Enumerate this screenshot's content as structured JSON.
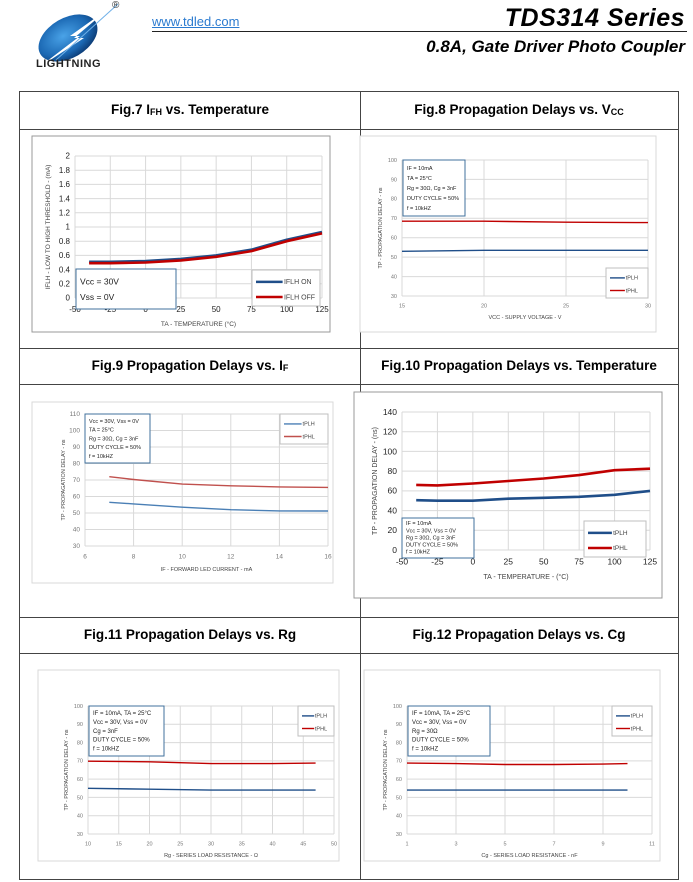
{
  "header": {
    "brand": "LIGHTNING",
    "registered": "®",
    "url": "www.tdled.com",
    "title": "TDS314  Series",
    "subtitle": "0.8A,  Gate  Driver  Photo  Coupler"
  },
  "figures": [
    {
      "caption_main": "Fig.7 I",
      "caption_sub": "FH",
      "caption_tail": " vs. Temperature"
    },
    {
      "caption_main": "Fig.8 Propagation Delays vs. V",
      "caption_sub": "CC",
      "caption_tail": ""
    },
    {
      "caption_main": "Fig.9 Propagation Delays vs. I",
      "caption_sub": "F",
      "caption_tail": ""
    },
    {
      "caption_main": "Fig.10 Propagation Delays vs. Temperature",
      "caption_sub": "",
      "caption_tail": ""
    },
    {
      "caption_main": "Fig.11 Propagation Delays vs. Rg",
      "caption_sub": "",
      "caption_tail": ""
    },
    {
      "caption_main": "Fig.12 Propagation Delays vs. Cg",
      "caption_sub": "",
      "caption_tail": ""
    }
  ],
  "colors": {
    "blue": "#1f4e89",
    "red": "#c00000",
    "lightblue": "#4a7fb5",
    "lightred": "#c0504d",
    "grid": "#d9d9d9"
  },
  "chart_data": [
    {
      "type": "line",
      "title": "Fig.7 IFH vs. Temperature",
      "xlabel": "TA - TEMPERATURE (°C)",
      "ylabel": "IFLH - LOW TO HIGH THRESHOLD - (mA)",
      "xlim": [
        -50,
        125
      ],
      "ylim": [
        0,
        2
      ],
      "xticks": [
        -50,
        -25,
        0,
        25,
        50,
        75,
        100,
        125
      ],
      "yticks": [
        0,
        0.2,
        0.4,
        0.6,
        0.8,
        1,
        1.2,
        1.4,
        1.6,
        1.8,
        2
      ],
      "ytick_labels": [
        "0",
        "0.2",
        "0.4",
        "0.6",
        "0.8",
        "1",
        "1.2",
        "1.4",
        "1.6",
        "1.8",
        "2"
      ],
      "annotation": [
        "Vcc = 30V",
        "Vss = 0V"
      ],
      "legend": "bottom-right",
      "bold": true,
      "series": [
        {
          "name": "IFLH ON",
          "color": "#1f4e89",
          "x": [
            -40,
            -25,
            0,
            25,
            50,
            75,
            100,
            125
          ],
          "y": [
            0.51,
            0.51,
            0.52,
            0.55,
            0.6,
            0.68,
            0.82,
            0.93
          ]
        },
        {
          "name": "IFLH OFF",
          "color": "#c00000",
          "x": [
            -40,
            -25,
            0,
            25,
            50,
            75,
            100,
            125
          ],
          "y": [
            0.49,
            0.49,
            0.5,
            0.53,
            0.58,
            0.66,
            0.8,
            0.91
          ]
        }
      ]
    },
    {
      "type": "line",
      "title": "Fig.8 Propagation Delays vs. VCC",
      "xlabel": "VCC - SUPPLY VOLTAGE - V",
      "ylabel": "TP - PROPAGATION DELAY - ns",
      "xlim": [
        15,
        30
      ],
      "ylim": [
        30,
        100
      ],
      "xticks": [
        15,
        20,
        25,
        30
      ],
      "yticks": [
        30,
        40,
        50,
        60,
        70,
        80,
        90,
        100
      ],
      "ytick_labels": [
        "30",
        "40",
        "50",
        "60",
        "70",
        "80",
        "90",
        "100"
      ],
      "annotation": [
        "IF = 10mA",
        "TA = 25°C",
        "Rg = 30Ω, Cg = 3nF",
        "DUTY CYCLE = 50%",
        "f = 10kHZ"
      ],
      "legend": "bottom-right",
      "bold": false,
      "series": [
        {
          "name": "tPLH",
          "color": "#1f4e89",
          "x": [
            15,
            20,
            25,
            30
          ],
          "y": [
            53,
            53.5,
            53.5,
            53.5
          ]
        },
        {
          "name": "tPHL",
          "color": "#c00000",
          "x": [
            15,
            20,
            25,
            30
          ],
          "y": [
            68.5,
            68.5,
            68,
            67.8
          ]
        }
      ]
    },
    {
      "type": "line",
      "title": "Fig.9 Propagation Delays vs. IF",
      "xlabel": "IF - FORWARD LED CURRENT - mA",
      "ylabel": "TP - PROPAGATION DELAY - ns",
      "xlim": [
        6,
        16
      ],
      "ylim": [
        30,
        110
      ],
      "xticks": [
        6,
        8,
        10,
        12,
        14,
        16
      ],
      "yticks": [
        30,
        40,
        50,
        60,
        70,
        80,
        90,
        100,
        110
      ],
      "ytick_labels": [
        "30",
        "40",
        "50",
        "60",
        "70",
        "80",
        "90",
        "100",
        "110"
      ],
      "annotation": [
        "Vcc = 30V, Vss = 0V",
        "TA = 25°C",
        "Rg = 30Ω, Cg = 3nF",
        "DUTY CYCLE = 50%",
        "f = 10kHZ"
      ],
      "legend": "top-right",
      "bold": false,
      "series": [
        {
          "name": "tPLH",
          "color": "#4a7fb5",
          "x": [
            7,
            8,
            10,
            12,
            14,
            16
          ],
          "y": [
            56.5,
            55.5,
            53.5,
            52,
            51.3,
            51.2
          ]
        },
        {
          "name": "tPHL",
          "color": "#c0504d",
          "x": [
            7,
            8,
            10,
            12,
            14,
            16
          ],
          "y": [
            72,
            70.3,
            67.5,
            66.5,
            65.8,
            65.5
          ]
        }
      ]
    },
    {
      "type": "line",
      "title": "Fig.10 Propagation Delays vs. Temperature",
      "xlabel": "TA - TEMPERATURE - (°C)",
      "ylabel": "TP - PROPAGATION DELAY - (ns)",
      "xlim": [
        -50,
        125
      ],
      "ylim": [
        0,
        140
      ],
      "xticks": [
        -50,
        -25,
        0,
        25,
        50,
        75,
        100,
        125
      ],
      "yticks": [
        0,
        20,
        40,
        60,
        80,
        100,
        120,
        140
      ],
      "ytick_labels": [
        "0",
        "20",
        "40",
        "60",
        "80",
        "100",
        "120",
        "140"
      ],
      "annotation": [
        "IF = 10mA",
        "Vcc = 30V, Vss = 0V",
        "Rg = 30Ω, Cg = 3nF",
        "DUTY CYCLE = 50%",
        "f = 10kHZ"
      ],
      "legend": "bottom-right",
      "bold": true,
      "series": [
        {
          "name": "tPLH",
          "color": "#1f4e89",
          "x": [
            -40,
            -25,
            0,
            25,
            50,
            75,
            100,
            125
          ],
          "y": [
            50.5,
            50,
            50,
            52,
            53,
            54,
            56,
            60
          ]
        },
        {
          "name": "tPHL",
          "color": "#c00000",
          "x": [
            -40,
            -25,
            0,
            25,
            50,
            75,
            100,
            125
          ],
          "y": [
            66,
            65.5,
            67.5,
            70,
            72.5,
            76,
            81,
            82.5
          ]
        }
      ]
    },
    {
      "type": "line",
      "title": "Fig.11 Propagation Delays vs. Rg",
      "xlabel": "Rg - SERIES LOAD RESISTANCE - Ω",
      "ylabel": "TP - PROPAGATION DELAY - ns",
      "xlim": [
        10,
        50
      ],
      "ylim": [
        30,
        100
      ],
      "xticks": [
        10,
        15,
        20,
        25,
        30,
        35,
        40,
        45,
        50
      ],
      "yticks": [
        30,
        40,
        50,
        60,
        70,
        80,
        90,
        100
      ],
      "ytick_labels": [
        "30",
        "40",
        "50",
        "60",
        "70",
        "80",
        "90",
        "100"
      ],
      "annotation": [
        "IF = 10mA, TA = 25°C",
        "Vcc = 30V, Vss = 0V",
        "Cg = 3nF",
        "DUTY CYCLE = 50%",
        "f = 10kHZ"
      ],
      "legend": "top-right",
      "bold": false,
      "series": [
        {
          "name": "tPLH",
          "color": "#1f4e89",
          "x": [
            10,
            20,
            30,
            40,
            47
          ],
          "y": [
            55,
            54.5,
            54,
            54,
            54
          ]
        },
        {
          "name": "tPHL",
          "color": "#c00000",
          "x": [
            10,
            20,
            25,
            30,
            40,
            47
          ],
          "y": [
            69.8,
            69.5,
            69,
            68.5,
            68.5,
            68.8
          ]
        }
      ]
    },
    {
      "type": "line",
      "title": "Fig.12 Propagation Delays vs. Cg",
      "xlabel": "Cg - SERIES LOAD RESISTANCE - nF",
      "ylabel": "TP - PROPAGATION DELAY - ns",
      "xlim": [
        1,
        11
      ],
      "ylim": [
        30,
        100
      ],
      "xticks": [
        1,
        3,
        5,
        7,
        9,
        11
      ],
      "yticks": [
        30,
        40,
        50,
        60,
        70,
        80,
        90,
        100
      ],
      "ytick_labels": [
        "30",
        "40",
        "50",
        "60",
        "70",
        "80",
        "90",
        "100"
      ],
      "annotation": [
        "IF = 10mA, TA = 25°C",
        "Vcc = 30V, Vss = 0V",
        "Rg = 30Ω",
        "DUTY CYCLE = 50%",
        "f = 10kHZ"
      ],
      "legend": "top-right",
      "bold": false,
      "series": [
        {
          "name": "tPLH",
          "color": "#1f4e89",
          "x": [
            1,
            3,
            5,
            7,
            9,
            10
          ],
          "y": [
            54,
            54,
            54,
            54,
            54,
            54
          ]
        },
        {
          "name": "tPHL",
          "color": "#c00000",
          "x": [
            1,
            3,
            5,
            7,
            9,
            10
          ],
          "y": [
            68.8,
            68.5,
            68,
            68,
            68.2,
            68.5
          ]
        }
      ]
    }
  ]
}
